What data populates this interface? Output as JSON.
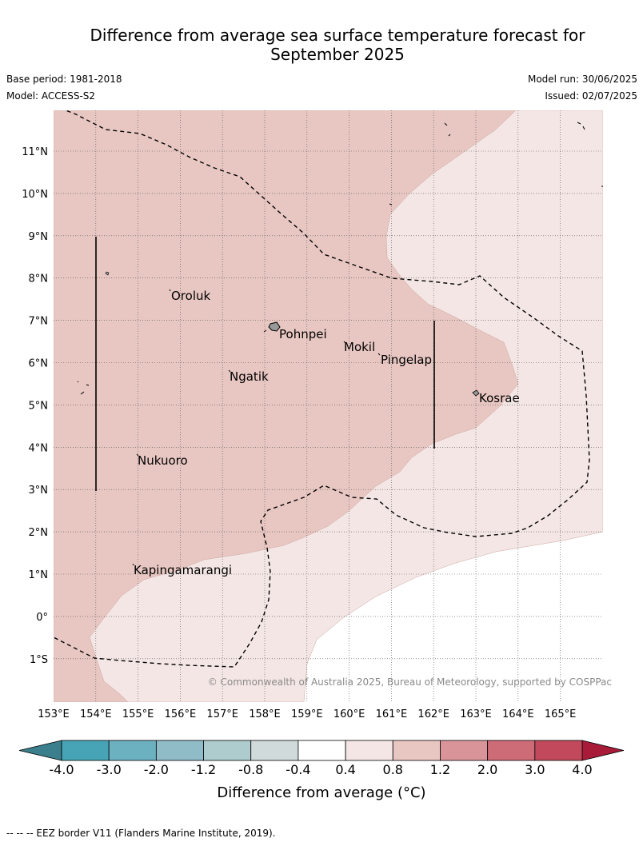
{
  "header": {
    "title_line1": "Difference from average sea surface temperature forecast for",
    "title_line2": "September 2025",
    "base_period": "Base period: 1981-2018",
    "model": "Model: ACCESS-S2",
    "model_run": "Model run: 30/06/2025",
    "issued": "Issued: 02/07/2025"
  },
  "map": {
    "lon_ticks": [
      "153°E",
      "154°E",
      "155°E",
      "156°E",
      "157°E",
      "158°E",
      "159°E",
      "160°E",
      "161°E",
      "162°E",
      "163°E",
      "164°E",
      "165°E"
    ],
    "lat_ticks": [
      "11°N",
      "10°N",
      "9°N",
      "8°N",
      "7°N",
      "6°N",
      "5°N",
      "4°N",
      "3°N",
      "2°N",
      "1°N",
      "0°",
      "1°S"
    ],
    "places": [
      {
        "name": "Oroluk"
      },
      {
        "name": "Pohnpei"
      },
      {
        "name": "Mokil"
      },
      {
        "name": "Pingelap"
      },
      {
        "name": "Ngatik"
      },
      {
        "name": "Kosrae"
      },
      {
        "name": "Nukuoro"
      },
      {
        "name": "Kapingamarangi"
      }
    ],
    "copyright": "© Commonwealth of Australia 2025, Bureau of Meteorology, supported by COSPPac",
    "colors": {
      "band_0_8_1_2": "#e8c7c2",
      "band_0_4_0_8": "#f4e6e4",
      "band_m0_4_0_4": "#ffffff"
    }
  },
  "colorbar": {
    "title": "Difference from average (°C)",
    "labels": [
      "-4.0",
      "-3.0",
      "-2.0",
      "-1.2",
      "-0.8",
      "-0.4",
      "0.4",
      "0.8",
      "1.2",
      "2.0",
      "3.0",
      "4.0"
    ],
    "colors": [
      "#46a4b6",
      "#6cb1c0",
      "#8fbcc7",
      "#aecbce",
      "#d0dada",
      "#ffffff",
      "#f4e6e4",
      "#e8c7c2",
      "#d9949a",
      "#cd6b77",
      "#c1495b"
    ],
    "under_color": "#3b7f8c",
    "over_color": "#a81c3a"
  },
  "footnote": "--  --  -- EEZ border V11 (Flanders Marine Institute, 2019)."
}
